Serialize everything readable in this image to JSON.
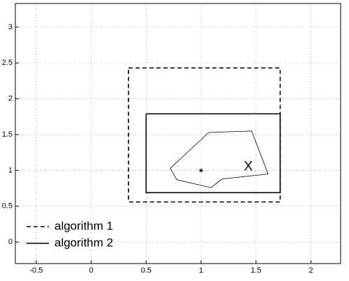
{
  "chart_data": {
    "type": "line",
    "xlim": [
      -0.69,
      2.27
    ],
    "ylim": [
      -0.3,
      3.33
    ],
    "xticks": [
      -0.5,
      0,
      0.5,
      1,
      1.5,
      2
    ],
    "yticks": [
      0,
      0.5,
      1,
      1.5,
      2,
      2.5,
      3
    ],
    "grid": true,
    "legend": "lower left",
    "series": [
      {
        "name": "algorithm 1",
        "color": "#000000",
        "style": "dashed",
        "x": [
          0.34,
          1.72,
          1.72,
          0.34,
          0.34
        ],
        "y": [
          2.43,
          2.43,
          0.56,
          0.56,
          2.43
        ]
      },
      {
        "name": "algorithm 2",
        "color": "#000000",
        "style": "solid",
        "x": [
          0.5,
          1.72,
          1.72,
          0.5,
          0.5
        ],
        "y": [
          1.79,
          1.79,
          0.69,
          0.69,
          1.79
        ]
      },
      {
        "color": "#000000",
        "style": "thin",
        "x": [
          0.72,
          1.07,
          1.46,
          1.61,
          1.19,
          1.09,
          0.78,
          0.72
        ],
        "y": [
          1.03,
          1.53,
          1.55,
          0.95,
          0.88,
          0.76,
          0.87,
          1.03
        ]
      },
      {
        "color": "#000000",
        "style": "marker",
        "x": [
          1
        ],
        "y": [
          1
        ]
      }
    ],
    "annotations": [
      {
        "text": "X",
        "x": 1.43,
        "y": 1.05
      }
    ]
  }
}
